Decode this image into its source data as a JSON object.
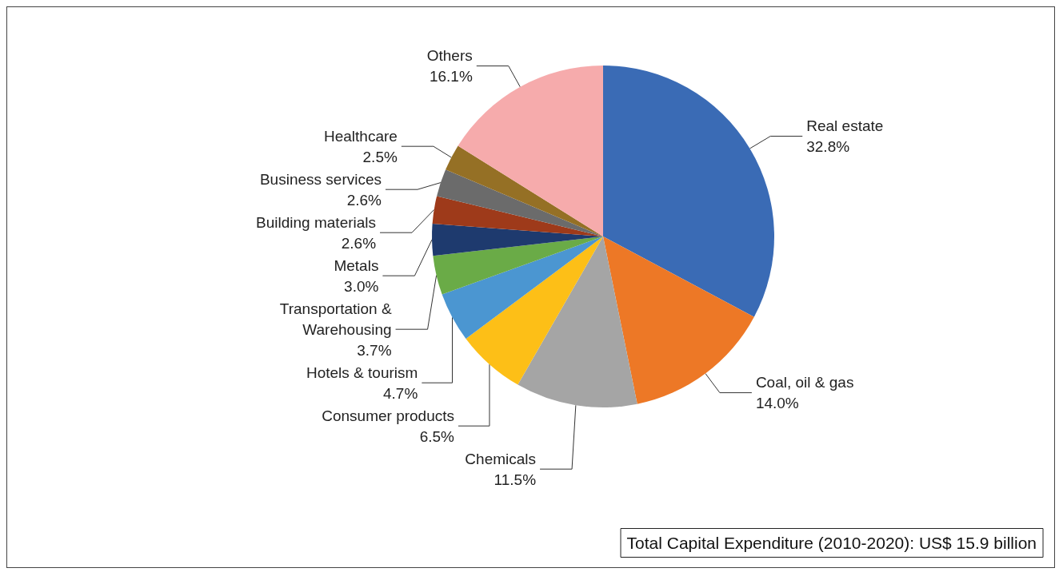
{
  "chart_data": {
    "type": "pie",
    "categories": [
      "Real estate",
      "Coal, oil & gas",
      "Chemicals",
      "Consumer products",
      "Hotels & tourism",
      "Transportation &\nWarehousing",
      "Metals",
      "Building materials",
      "Business services",
      "Healthcare",
      "Others"
    ],
    "values": [
      32.8,
      14.0,
      11.5,
      6.5,
      4.7,
      3.7,
      3.0,
      2.6,
      2.6,
      2.5,
      16.1
    ],
    "value_labels": [
      "32.8%",
      "14.0%",
      "11.5%",
      "6.5%",
      "4.7%",
      "3.7%",
      "3.0%",
      "2.6%",
      "2.6%",
      "2.5%",
      "16.1%"
    ],
    "colors": [
      "#3a6bb5",
      "#ed7826",
      "#a5a5a5",
      "#fdbf17",
      "#4b96d1",
      "#6aab47",
      "#1e3a6e",
      "#9e3a1a",
      "#6b6b6b",
      "#957025",
      "#f6abac"
    ],
    "legend": false,
    "annotations": [
      "Total Capital Expenditure (2010-2020): US$ 15.9 billion"
    ]
  }
}
